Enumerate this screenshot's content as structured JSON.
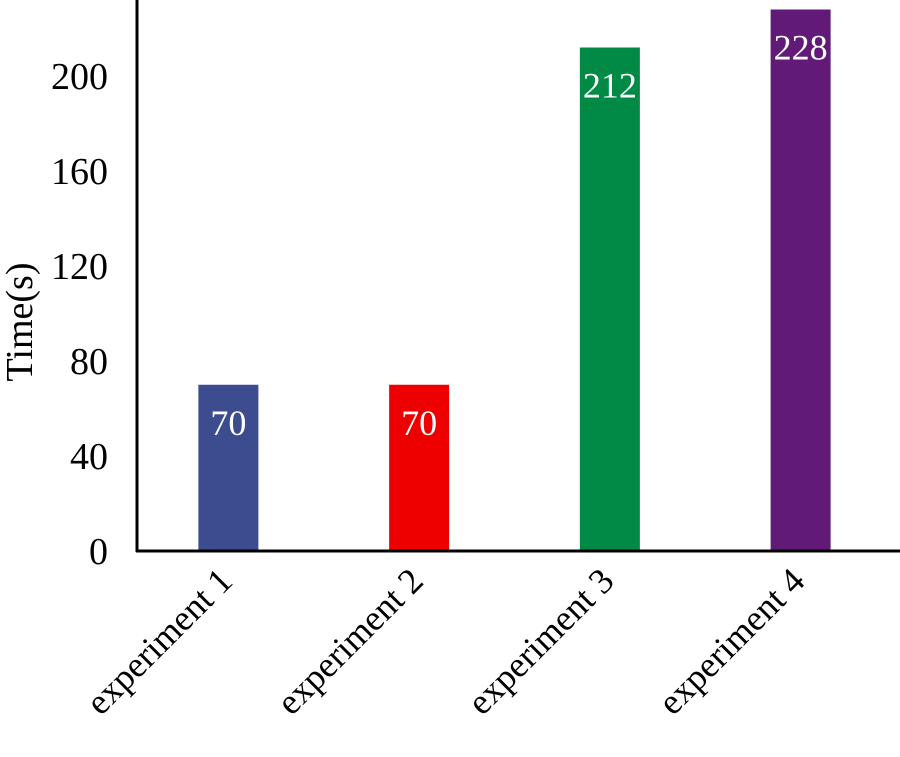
{
  "chart_data": {
    "type": "bar",
    "title": "",
    "xlabel": "",
    "ylabel": "Time(s)",
    "ylim": [
      0,
      232
    ],
    "yticks": [
      0,
      40,
      80,
      120,
      160,
      200
    ],
    "grid": false,
    "categories": [
      "experiment 1",
      "experiment 2",
      "experiment 3",
      "experiment 4"
    ],
    "values": [
      70,
      70,
      212,
      228
    ],
    "data_labels": [
      "70",
      "70",
      "212",
      "228"
    ],
    "colors": [
      "#3d4b8f",
      "#ee0000",
      "#008a45",
      "#621a79"
    ]
  }
}
